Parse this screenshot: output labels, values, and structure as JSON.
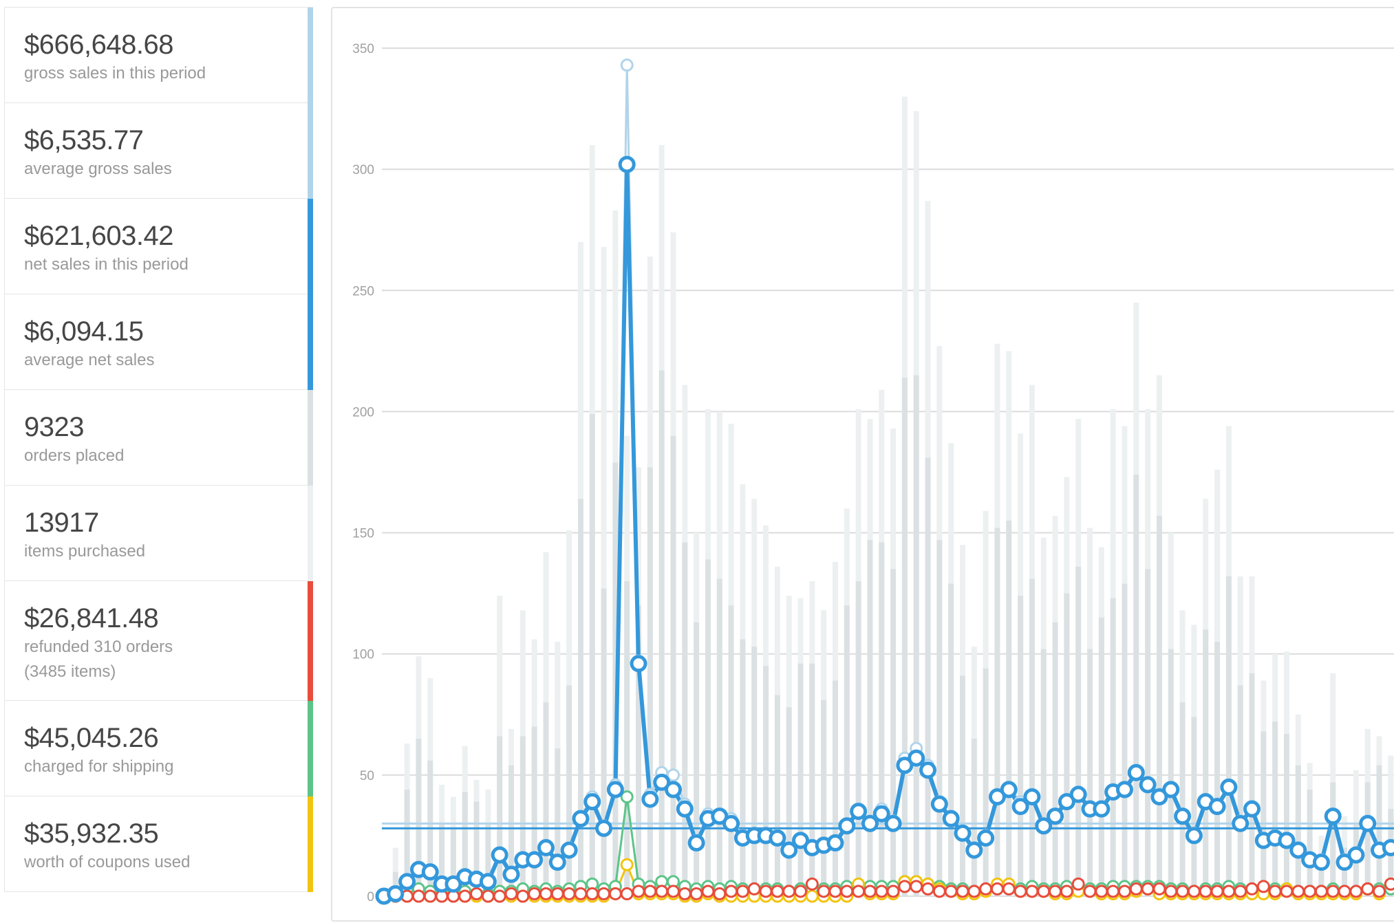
{
  "legend": {
    "items": [
      {
        "value": "$666,648.68",
        "label": "gross sales in this period",
        "color": "#b1d4ea"
      },
      {
        "value": "$6,535.77",
        "label": "average gross sales",
        "color": "#b1d4ea"
      },
      {
        "value": "$621,603.42",
        "label": "net sales in this period",
        "color": "#3498db"
      },
      {
        "value": "$6,094.15",
        "label": "average net sales",
        "color": "#3498db"
      },
      {
        "value": "9323",
        "label": "orders placed",
        "color": "#dbe1e3"
      },
      {
        "value": "13917",
        "label": "items purchased",
        "color": "#ecf0f1"
      },
      {
        "value": "$26,841.48",
        "label": "refunded 310 orders",
        "label2": "(3485 items)",
        "color": "#e74c3c"
      },
      {
        "value": "$45,045.26",
        "label": "charged for shipping",
        "color": "#5cc488"
      },
      {
        "value": "$35,932.35",
        "label": "worth of coupons used",
        "color": "#f1c40f"
      }
    ]
  },
  "chart_data": {
    "type": "bar+line",
    "ylim": [
      0,
      350
    ],
    "yticks": [
      "0",
      "50",
      "100",
      "150",
      "200",
      "250",
      "300",
      "350"
    ],
    "grid": true,
    "bars": [
      {
        "legend_index": 5,
        "color": "#ecf0f1",
        "values": [
          0,
          20,
          63,
          99,
          90,
          46,
          41,
          62,
          48,
          44,
          124,
          69,
          118,
          106,
          142,
          105,
          151,
          270,
          310,
          268,
          283,
          190,
          177,
          264,
          310,
          274,
          211,
          150,
          201,
          200,
          195,
          170,
          164,
          153,
          136,
          124,
          123,
          130,
          118,
          138,
          160,
          201,
          197,
          209,
          193,
          330,
          324,
          287,
          227,
          187,
          145,
          103,
          159,
          228,
          225,
          191,
          211,
          148,
          157,
          173,
          197,
          152,
          144,
          201,
          194,
          245,
          201,
          215,
          150,
          118,
          112,
          164,
          176,
          194,
          132,
          132,
          89,
          100,
          101,
          75,
          55,
          25,
          92,
          33,
          52,
          69,
          66,
          58
        ]
      },
      {
        "legend_index": 4,
        "color": "#dbe1e3",
        "values": [
          0,
          10,
          44,
          65,
          56,
          30,
          28,
          43,
          39,
          30,
          66,
          54,
          66,
          70,
          80,
          61,
          87,
          164,
          199,
          127,
          179,
          130,
          120,
          177,
          217,
          190,
          146,
          113,
          139,
          131,
          120,
          106,
          103,
          95,
          83,
          78,
          96,
          96,
          81,
          89,
          120,
          130,
          147,
          146,
          135,
          214,
          215,
          181,
          147,
          129,
          91,
          65,
          94,
          152,
          155,
          124,
          131,
          102,
          113,
          125,
          136,
          102,
          115,
          123,
          129,
          174,
          135,
          157,
          102,
          80,
          74,
          110,
          105,
          132,
          87,
          92,
          68,
          72,
          67,
          54,
          44,
          17,
          47,
          20,
          30,
          47,
          54,
          36
        ]
      }
    ],
    "averages": [
      {
        "legend_index": 1,
        "color": "#b1d4ea",
        "value": 30
      },
      {
        "legend_index": 3,
        "color": "#3498db",
        "value": 28
      }
    ],
    "lines": [
      {
        "legend_index": 0,
        "color": "#b1d4ea",
        "values": [
          0,
          1,
          7,
          12,
          11,
          6,
          6,
          9,
          8,
          7,
          18,
          10,
          16,
          16,
          21,
          15,
          20,
          33,
          41,
          29,
          46,
          343,
          97,
          42,
          51,
          50,
          38,
          23,
          34,
          34,
          32,
          25,
          26,
          26,
          25,
          20,
          24,
          21,
          22,
          23,
          30,
          36,
          31,
          36,
          31,
          57,
          61,
          54,
          39,
          33,
          27,
          20,
          25,
          42,
          45,
          39,
          42,
          30,
          34,
          40,
          43,
          37,
          37,
          44,
          45,
          52,
          47,
          42,
          45,
          34,
          26,
          40,
          38,
          46,
          31,
          37,
          24,
          25,
          24,
          20,
          16,
          15,
          34,
          15,
          18,
          31,
          20,
          21
        ]
      },
      {
        "legend_index": 2,
        "color": "#3498db",
        "values": [
          0,
          1,
          6,
          11,
          10,
          5,
          5,
          8,
          7,
          6,
          17,
          9,
          15,
          15,
          20,
          14,
          19,
          32,
          39,
          28,
          44,
          302,
          96,
          40,
          47,
          44,
          36,
          22,
          32,
          33,
          30,
          24,
          25,
          25,
          24,
          19,
          23,
          20,
          21,
          22,
          29,
          35,
          30,
          34,
          30,
          54,
          57,
          52,
          38,
          32,
          26,
          19,
          24,
          41,
          44,
          37,
          41,
          29,
          33,
          39,
          42,
          36,
          36,
          43,
          44,
          51,
          46,
          41,
          44,
          33,
          25,
          39,
          37,
          45,
          30,
          36,
          23,
          24,
          23,
          19,
          15,
          14,
          33,
          14,
          17,
          30,
          19,
          20
        ]
      },
      {
        "legend_index": 7,
        "color": "#5cc488",
        "values": [
          0,
          1,
          3,
          3,
          2,
          1,
          1,
          2,
          1,
          1,
          2,
          2,
          3,
          2,
          3,
          2,
          3,
          4,
          5,
          3,
          4,
          41,
          5,
          4,
          6,
          6,
          4,
          3,
          4,
          3,
          4,
          3,
          3,
          3,
          3,
          2,
          3,
          3,
          3,
          3,
          4,
          4,
          4,
          4,
          4,
          6,
          6,
          5,
          4,
          3,
          3,
          2,
          3,
          4,
          4,
          3,
          4,
          3,
          3,
          4,
          4,
          3,
          3,
          4,
          4,
          4,
          4,
          4,
          3,
          3,
          2,
          3,
          3,
          4,
          3,
          3,
          3,
          3,
          3,
          2,
          2,
          2,
          3,
          2,
          2,
          3,
          3,
          3
        ]
      },
      {
        "legend_index": 8,
        "color": "#f1c40f",
        "values": [
          0,
          0,
          0,
          0,
          0,
          0,
          0,
          0,
          0,
          0,
          0,
          0,
          0,
          0,
          0,
          0,
          0,
          0,
          0,
          0,
          1,
          13,
          1,
          1,
          1,
          1,
          0,
          0,
          1,
          0,
          0,
          0,
          0,
          0,
          0,
          0,
          0,
          0,
          0,
          0,
          0,
          5,
          1,
          1,
          1,
          6,
          6,
          5,
          3,
          2,
          1,
          1,
          2,
          5,
          5,
          2,
          2,
          2,
          1,
          1,
          2,
          2,
          1,
          1,
          1,
          2,
          3,
          1,
          1,
          1,
          1,
          1,
          1,
          1,
          1,
          1,
          1,
          1,
          3,
          1,
          1,
          1,
          1,
          1,
          1,
          3,
          1,
          5
        ]
      },
      {
        "legend_index": 6,
        "color": "#e74c3c",
        "values": [
          0,
          0,
          0,
          0,
          0,
          0,
          0,
          0,
          1,
          0,
          0,
          1,
          0,
          1,
          1,
          1,
          1,
          1,
          1,
          1,
          1,
          1,
          2,
          2,
          2,
          2,
          1,
          1,
          2,
          1,
          2,
          2,
          3,
          2,
          2,
          2,
          2,
          5,
          2,
          2,
          2,
          2,
          2,
          2,
          2,
          4,
          4,
          3,
          2,
          2,
          2,
          2,
          3,
          3,
          3,
          2,
          2,
          2,
          2,
          2,
          5,
          2,
          2,
          2,
          2,
          3,
          3,
          3,
          2,
          2,
          2,
          2,
          2,
          2,
          2,
          3,
          4,
          2,
          2,
          2,
          2,
          2,
          2,
          2,
          2,
          3,
          2,
          5
        ]
      }
    ]
  }
}
